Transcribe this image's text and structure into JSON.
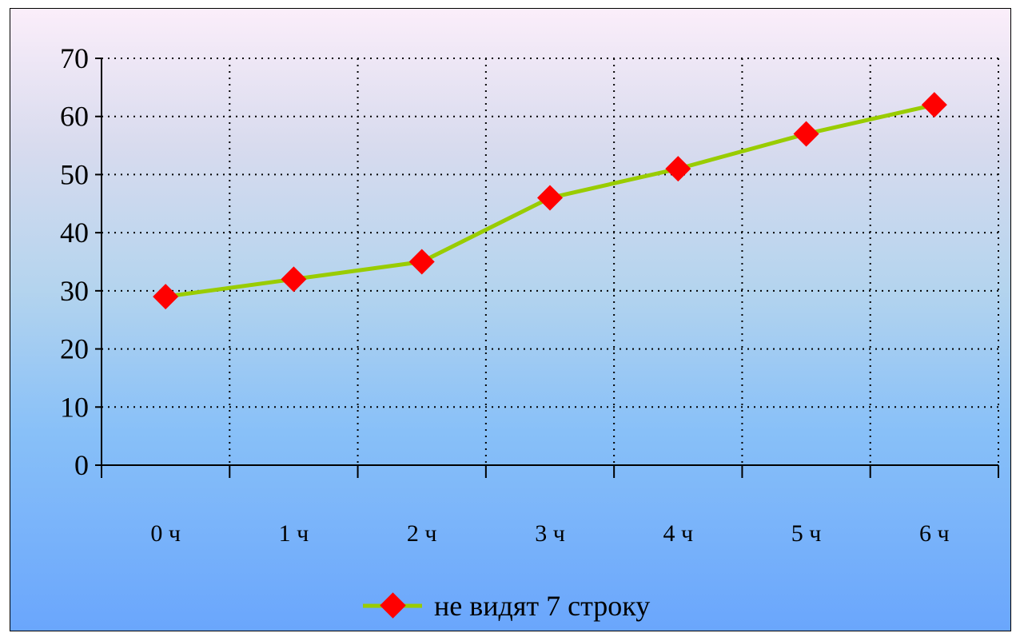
{
  "chart_data": {
    "type": "line",
    "categories": [
      "0 ч",
      "1 ч",
      "2 ч",
      "3 ч",
      "4 ч",
      "5 ч",
      "6 ч"
    ],
    "series": [
      {
        "name": "не видят 7 строку",
        "values": [
          29,
          32,
          35,
          46,
          51,
          57,
          62
        ],
        "line_color": "#99cc00",
        "marker_color": "#ff0000",
        "marker": "diamond"
      }
    ],
    "y_ticks": [
      "0",
      "10",
      "20",
      "30",
      "40",
      "50",
      "60",
      "70"
    ],
    "ylim": [
      0,
      70
    ],
    "grid": true,
    "legend_position": "bottom",
    "title": "",
    "xlabel": "",
    "ylabel": ""
  }
}
